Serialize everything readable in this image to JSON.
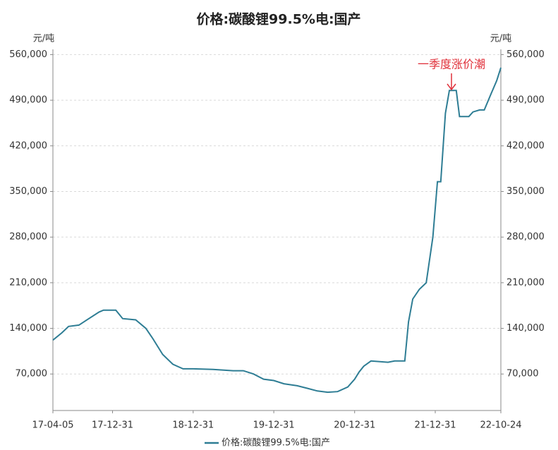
{
  "chart_data": {
    "type": "line",
    "title": "价格:碳酸锂99.5%电:国产",
    "y_unit": "元/吨",
    "y2_unit": "元/吨",
    "annotation": "一季度涨价潮",
    "annotation_color": "#e0303a",
    "grid": true,
    "x": [
      "17-04-05",
      "17-05-15",
      "17-06-15",
      "17-08-01",
      "17-09-15",
      "17-10-31",
      "17-11-20",
      "18-01-15",
      "18-02-15",
      "18-04-15",
      "18-05-31",
      "18-06-30",
      "18-08-15",
      "18-09-30",
      "18-11-15",
      "18-12-31",
      "19-03-31",
      "19-06-30",
      "19-08-15",
      "19-09-30",
      "19-11-15",
      "19-12-31",
      "20-02-15",
      "20-04-15",
      "20-06-01",
      "20-07-15",
      "20-08-31",
      "20-10-15",
      "20-11-30",
      "20-12-31",
      "21-01-20",
      "21-02-10",
      "21-03-15",
      "21-05-31",
      "21-06-30",
      "21-08-15",
      "21-09-01",
      "21-09-20",
      "21-10-20",
      "21-11-20",
      "21-12-20",
      "22-01-10",
      "22-01-25",
      "22-02-15",
      "22-03-05",
      "22-04-05",
      "22-04-20",
      "22-06-01",
      "22-06-20",
      "22-07-20",
      "22-08-10",
      "22-09-10",
      "22-10-05",
      "22-10-24"
    ],
    "series": [
      {
        "name": "价格:碳酸锂99.5%电:国产",
        "color": "#2e7d94",
        "values": [
          122000,
          133000,
          143000,
          145000,
          155000,
          165000,
          168000,
          168000,
          155000,
          153000,
          140000,
          125000,
          100000,
          85000,
          78000,
          78000,
          77000,
          75000,
          75000,
          70000,
          62000,
          60000,
          55000,
          52000,
          48000,
          44000,
          42000,
          43000,
          50000,
          62000,
          73000,
          82000,
          90000,
          88000,
          90000,
          90000,
          150000,
          185000,
          200000,
          210000,
          280000,
          365000,
          365000,
          470000,
          505000,
          505000,
          465000,
          465000,
          472000,
          475000,
          475000,
          500000,
          520000,
          540000
        ]
      }
    ],
    "xlim": [
      "17-04-05",
      "22-10-24"
    ],
    "xticks": [
      "17-04-05",
      "17-12-31",
      "18-12-31",
      "19-12-31",
      "20-12-31",
      "21-12-31",
      "22-10-24"
    ],
    "ylim": [
      14000,
      568000
    ],
    "yticks": [
      {
        "value": 70000,
        "label": "70,000"
      },
      {
        "value": 140000,
        "label": "140,000"
      },
      {
        "value": 210000,
        "label": "210,000"
      },
      {
        "value": 280000,
        "label": "280,000"
      },
      {
        "value": 350000,
        "label": "350,000"
      },
      {
        "value": 420000,
        "label": "420,000"
      },
      {
        "value": 490000,
        "label": "490,000"
      },
      {
        "value": 560000,
        "label": "560,000"
      }
    ],
    "y2lim": [
      14000,
      568000
    ],
    "y2ticks": [
      {
        "value": 70000,
        "label": "70,000"
      },
      {
        "value": 140000,
        "label": "140,000"
      },
      {
        "value": 210000,
        "label": "210,000"
      },
      {
        "value": 280000,
        "label": "280,000"
      },
      {
        "value": 350000,
        "label": "350,000"
      },
      {
        "value": 420000,
        "label": "420,000"
      },
      {
        "value": 490000,
        "label": "490,000"
      },
      {
        "value": 560000,
        "label": "560,000"
      }
    ]
  }
}
